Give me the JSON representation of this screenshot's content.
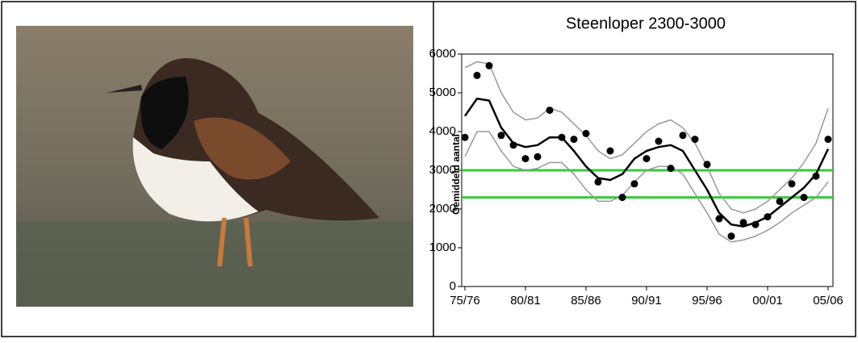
{
  "chart_data": {
    "type": "line",
    "title": "Steenloper 2300-3000",
    "y_label": "Gemiddeld aantal",
    "categories": [
      "75/76",
      null,
      null,
      null,
      null,
      "80/81",
      null,
      null,
      null,
      null,
      "85/86",
      null,
      null,
      null,
      null,
      "90/91",
      null,
      null,
      null,
      null,
      "95/96",
      null,
      null,
      null,
      null,
      "00/01",
      null,
      null,
      null,
      null,
      "05/06"
    ],
    "ylim": [
      0,
      6000
    ],
    "yticks": [
      0,
      1000,
      2000,
      3000,
      4000,
      5000,
      6000
    ],
    "series": [
      {
        "mode": "lines",
        "color": "#999999",
        "values": [
          3350,
          4000,
          4000,
          3500,
          3100,
          3000,
          3050,
          3200,
          3200,
          2900,
          2500,
          2200,
          2200,
          2350,
          2700,
          3000,
          3100,
          3100,
          2900,
          2400,
          1900,
          1350,
          1150,
          1200,
          1300,
          1450,
          1650,
          1900,
          2100,
          2300,
          2700
        ]
      },
      {
        "mode": "lines",
        "color": "#999999",
        "values": [
          5650,
          5800,
          5750,
          5000,
          4500,
          4300,
          4350,
          4600,
          4500,
          4200,
          3900,
          3500,
          3300,
          3400,
          3700,
          4000,
          4200,
          4300,
          4100,
          3700,
          3100,
          2400,
          2000,
          1900,
          2000,
          2200,
          2500,
          2800,
          3200,
          3700,
          4600
        ]
      },
      {
        "mode": "lines",
        "color": "#000000",
        "values": [
          4400,
          4850,
          4800,
          4100,
          3700,
          3600,
          3650,
          3850,
          3850,
          3500,
          3100,
          2800,
          2750,
          2900,
          3300,
          3500,
          3600,
          3650,
          3500,
          3000,
          2500,
          1900,
          1600,
          1550,
          1650,
          1800,
          2050,
          2300,
          2550,
          2900,
          3550
        ]
      },
      {
        "mode": "markers",
        "color": "#000000",
        "values": [
          3850,
          5450,
          5700,
          3900,
          3650,
          3300,
          3350,
          4550,
          3850,
          3800,
          3950,
          2700,
          3500,
          2300,
          2650,
          3300,
          3750,
          3050,
          3900,
          3800,
          3150,
          1750,
          1300,
          1650,
          1600,
          1800,
          2200,
          2650,
          2300,
          2850,
          3800
        ]
      }
    ],
    "reference_lines": [
      {
        "value": 3000,
        "color": "#33cc33"
      },
      {
        "value": 2300,
        "color": "#33cc33"
      }
    ]
  }
}
